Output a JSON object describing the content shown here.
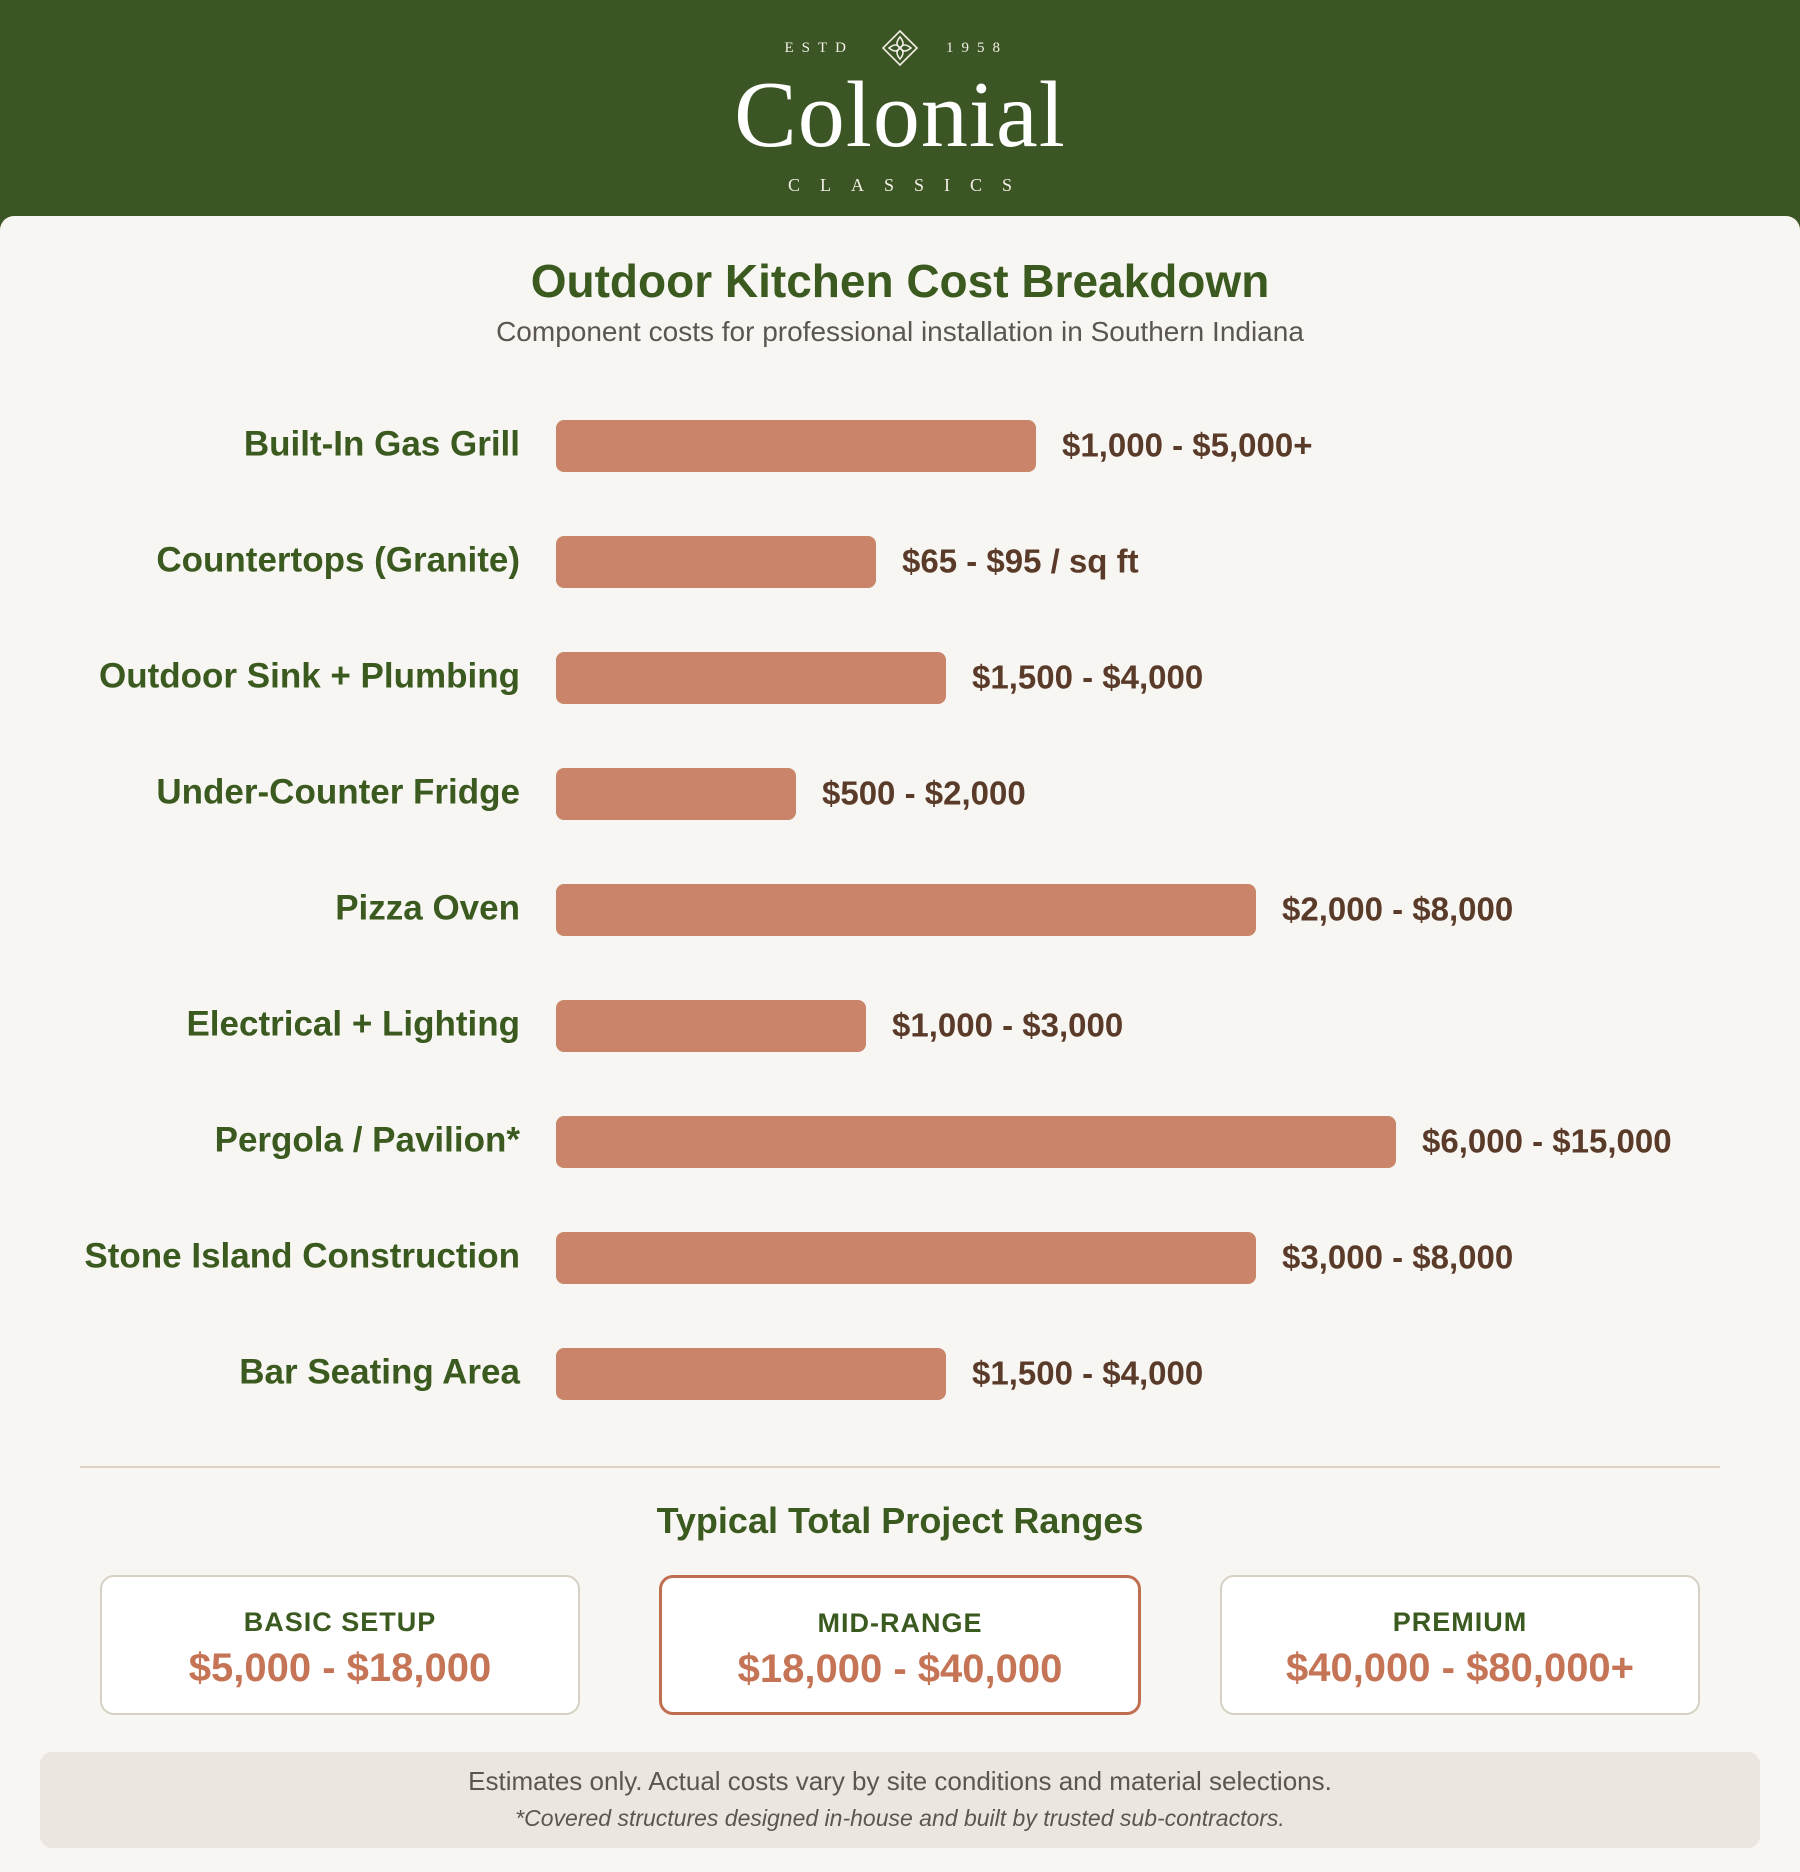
{
  "brand": {
    "estd_left": "ESTD",
    "estd_right": "1958",
    "name": "Colonial",
    "tagline": "CLASSICS"
  },
  "colors": {
    "header_bg": "#3c5524",
    "bar": "#c98469",
    "label": "#3b5a1f",
    "value": "#5a3b2a",
    "tier_accent": "#c57455"
  },
  "chart_data": {
    "type": "bar",
    "orientation": "horizontal",
    "title": "Outdoor Kitchen Cost Breakdown",
    "subtitle": "Component costs for professional installation in Southern Indiana",
    "categories": [
      "Built-In Gas Grill",
      "Countertops (Granite)",
      "Outdoor Sink + Plumbing",
      "Under-Counter Fridge",
      "Pizza Oven",
      "Electrical + Lighting",
      "Pergola / Pavilion*",
      "Stone Island Construction",
      "Bar Seating Area"
    ],
    "value_labels": [
      "$1,000 - $5,000+",
      "$65 - $95 / sq ft",
      "$1,500 - $4,000",
      "$500 - $2,000",
      "$2,000 - $8,000",
      "$1,000 - $3,000",
      "$6,000 - $15,000",
      "$3,000 - $8,000",
      "$1,500 - $4,000"
    ],
    "values": [
      4.8,
      3.2,
      3.9,
      2.4,
      7.0,
      3.1,
      8.4,
      7.0,
      3.9
    ],
    "xlim": [
      0,
      10
    ],
    "grid": false,
    "legend": "none"
  },
  "totals": {
    "title": "Typical Total Project Ranges",
    "tiers": [
      {
        "name": "BASIC SETUP",
        "range": "$5,000 - $18,000"
      },
      {
        "name": "MID-RANGE",
        "range": "$18,000 - $40,000"
      },
      {
        "name": "PREMIUM",
        "range": "$40,000 - $80,000+"
      }
    ]
  },
  "footer": {
    "note": "Estimates only. Actual costs vary by site conditions and material selections.",
    "footnote": "*Covered structures designed in-house and built by trusted sub-contractors."
  }
}
